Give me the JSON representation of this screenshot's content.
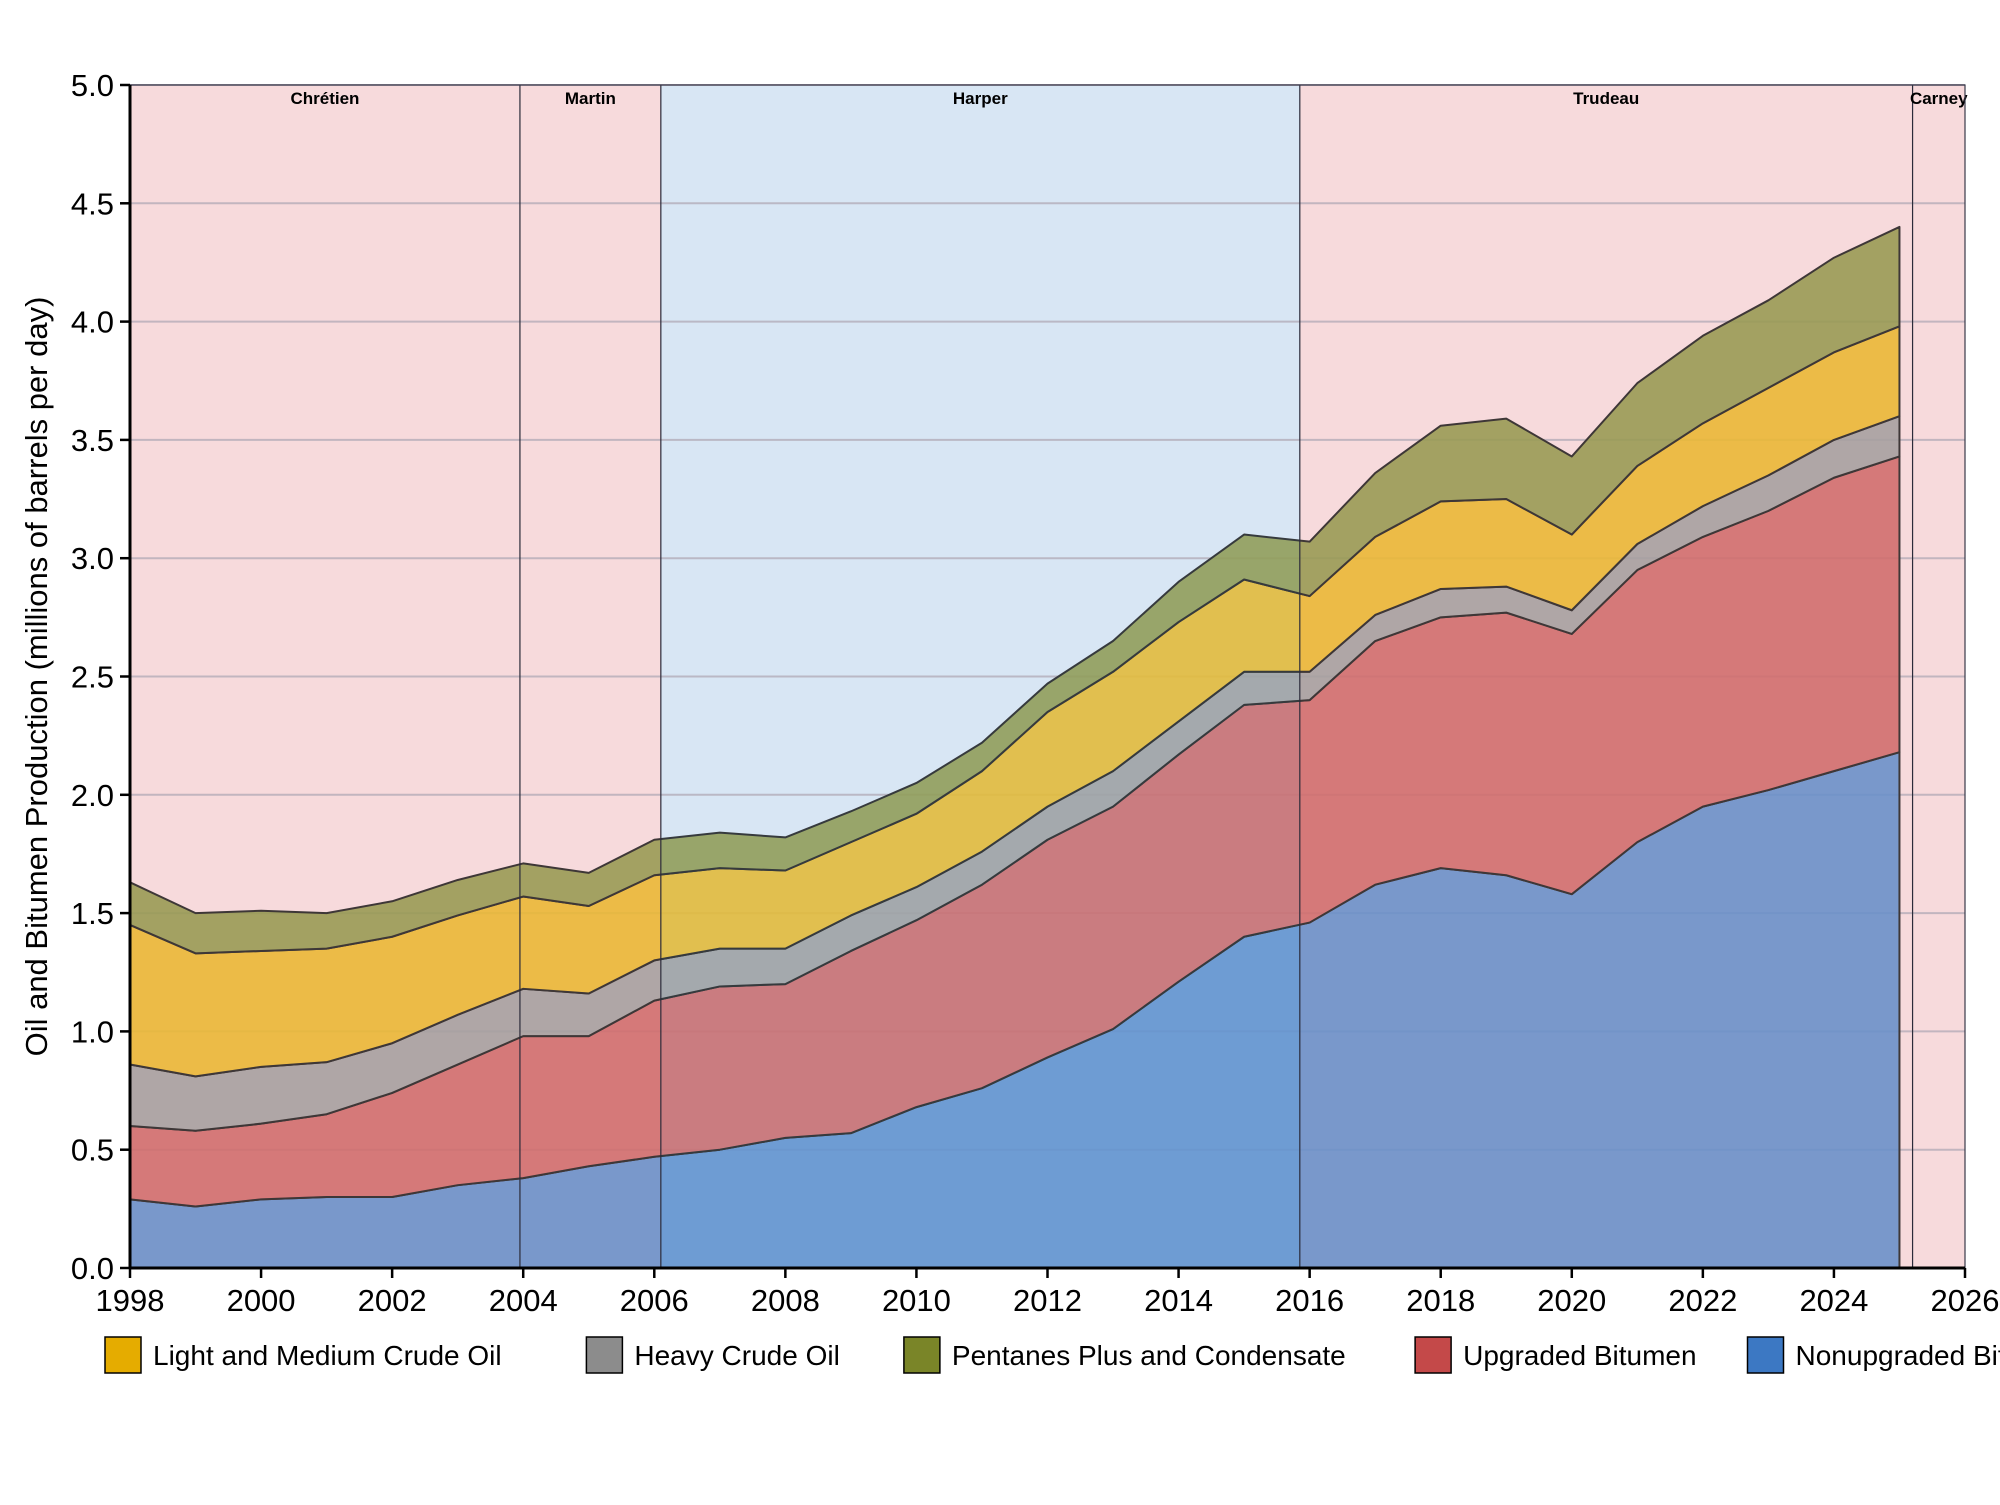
{
  "chart_data": {
    "type": "area",
    "stacked": true,
    "ylabel": "Oil and Bitumen Production (millions of barrels per day)",
    "xlim": [
      1998,
      2026
    ],
    "ylim": [
      0,
      5.0
    ],
    "x_ticks": [
      1998,
      2000,
      2002,
      2004,
      2006,
      2008,
      2010,
      2012,
      2014,
      2016,
      2018,
      2020,
      2022,
      2024,
      2026
    ],
    "x_tick_labels": [
      "1998",
      "2000",
      "2002",
      "2004",
      "2006",
      "2008",
      "2010",
      "2012",
      "2014",
      "2016",
      "2018",
      "2020",
      "2022",
      "2024",
      "2026"
    ],
    "y_ticks": [
      0,
      0.5,
      1.0,
      1.5,
      2.0,
      2.5,
      3.0,
      3.5,
      4.0,
      4.5,
      5.0
    ],
    "y_tick_labels": [
      "0.0",
      "0.5",
      "1.0",
      "1.5",
      "2.0",
      "2.5",
      "3.0",
      "3.5",
      "4.0",
      "4.5",
      "5.0"
    ],
    "grid": "horizontal",
    "legend_position": "bottom",
    "x": [
      1998,
      1999,
      2000,
      2001,
      2002,
      2003,
      2004,
      2005,
      2006,
      2007,
      2008,
      2009,
      2010,
      2011,
      2012,
      2013,
      2014,
      2015,
      2016,
      2017,
      2018,
      2019,
      2020,
      2021,
      2022,
      2023,
      2024,
      2025
    ],
    "series": [
      {
        "name": "Nonupgraded Bitumen",
        "color": "#3c78c3",
        "values": [
          0.29,
          0.26,
          0.29,
          0.3,
          0.3,
          0.35,
          0.38,
          0.43,
          0.47,
          0.5,
          0.55,
          0.57,
          0.68,
          0.76,
          0.89,
          1.01,
          1.21,
          1.4,
          1.46,
          1.62,
          1.69,
          1.66,
          1.58,
          1.8,
          1.95,
          2.02,
          2.1,
          2.18
        ]
      },
      {
        "name": "Upgraded Bitumen",
        "color": "#c44949",
        "values": [
          0.31,
          0.32,
          0.32,
          0.35,
          0.44,
          0.51,
          0.6,
          0.55,
          0.66,
          0.69,
          0.65,
          0.77,
          0.79,
          0.86,
          0.92,
          0.94,
          0.96,
          0.98,
          0.94,
          1.03,
          1.06,
          1.11,
          1.1,
          1.15,
          1.14,
          1.18,
          1.24,
          1.25
        ]
      },
      {
        "name": "Heavy Crude Oil",
        "color": "#8c8c8c",
        "values": [
          0.26,
          0.23,
          0.24,
          0.22,
          0.21,
          0.21,
          0.2,
          0.18,
          0.17,
          0.16,
          0.15,
          0.15,
          0.14,
          0.14,
          0.14,
          0.15,
          0.14,
          0.14,
          0.12,
          0.11,
          0.12,
          0.11,
          0.1,
          0.11,
          0.13,
          0.15,
          0.16,
          0.17
        ]
      },
      {
        "name": "Light and Medium Crude Oil",
        "color": "#e5ac00",
        "values": [
          0.59,
          0.52,
          0.49,
          0.48,
          0.45,
          0.42,
          0.39,
          0.37,
          0.36,
          0.34,
          0.33,
          0.31,
          0.31,
          0.34,
          0.4,
          0.42,
          0.42,
          0.39,
          0.32,
          0.33,
          0.37,
          0.37,
          0.32,
          0.33,
          0.35,
          0.37,
          0.37,
          0.38
        ]
      },
      {
        "name": "Pentanes Plus and Condensate",
        "color": "#7a8528",
        "values": [
          0.18,
          0.17,
          0.17,
          0.15,
          0.15,
          0.15,
          0.14,
          0.14,
          0.15,
          0.15,
          0.14,
          0.13,
          0.13,
          0.12,
          0.12,
          0.13,
          0.17,
          0.19,
          0.23,
          0.27,
          0.32,
          0.34,
          0.33,
          0.35,
          0.37,
          0.37,
          0.4,
          0.42
        ]
      }
    ],
    "legend_order": [
      "Light and Medium Crude Oil",
      "Heavy Crude Oil",
      "Pentanes Plus and Condensate",
      "Upgraded Bitumen",
      "Nonupgraded Bitumen"
    ],
    "eras": [
      {
        "label": "Chrétien",
        "start": 1998,
        "end": 2003.95,
        "color": "#f7dadd"
      },
      {
        "label": "Martin",
        "start": 2003.95,
        "end": 2006.1,
        "color": "#f7dadd"
      },
      {
        "label": "Harper",
        "start": 2006.1,
        "end": 2015.85,
        "color": "#d8e6f4"
      },
      {
        "label": "Trudeau",
        "start": 2015.85,
        "end": 2025.2,
        "color": "#f7dadd"
      },
      {
        "label": "Carney",
        "start": 2025.2,
        "end": 2026.05,
        "color": "#f7dadd"
      }
    ]
  }
}
